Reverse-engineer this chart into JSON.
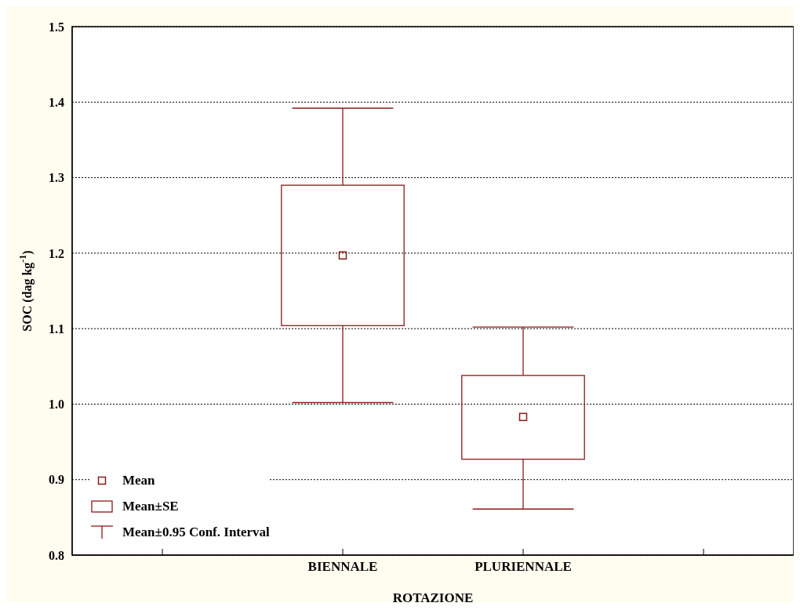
{
  "chart_data": {
    "type": "box",
    "xlabel": "ROTAZIONE",
    "ylabel": "SOC (dag kg$^{-1}$)",
    "categories": [
      null,
      "BIENNALE",
      "PLURIENNALE",
      null
    ],
    "boxes": [
      null,
      {
        "low": 1.002,
        "q1": 1.104,
        "median": 1.197,
        "q3": 1.29,
        "high": 1.392
      },
      {
        "low": 0.861,
        "q1": 0.927,
        "median": 0.983,
        "q3": 1.038,
        "high": 1.102
      },
      null
    ],
    "color": "#8b1a1a",
    "marker": "square",
    "ylim": [
      0.8,
      1.5
    ],
    "yticks": [
      {
        "value": 0.8,
        "label": "0.8"
      },
      {
        "value": 0.9,
        "label": "0.9"
      },
      {
        "value": 1,
        "label": "1.0"
      },
      {
        "value": 1.1,
        "label": "1.1"
      },
      {
        "value": 1.2,
        "label": "1.2"
      },
      {
        "value": 1.3,
        "label": "1.3"
      },
      {
        "value": 1.4,
        "label": "1.4"
      },
      {
        "value": 1.5,
        "label": "1.5"
      }
    ],
    "grid": "y",
    "annotations": [
      "Mean",
      "Mean±SE",
      "Mean±0.95 Conf. Interval"
    ]
  }
}
